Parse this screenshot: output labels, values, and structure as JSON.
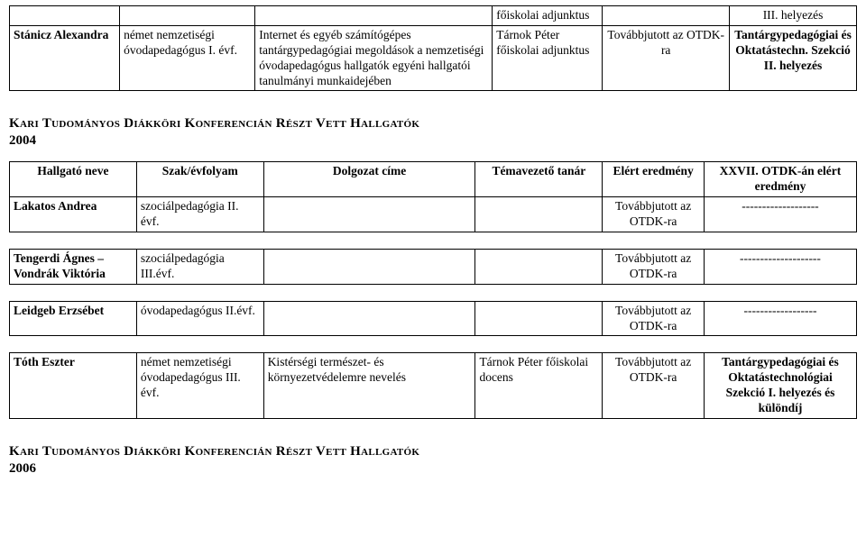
{
  "top_table": {
    "row0": {
      "c4": "főiskolai adjunktus",
      "c6": "III. helyezés"
    },
    "row1": {
      "c1": "Stánicz Alexandra",
      "c2": "német nemzetiségi óvodapedagógus I. évf.",
      "c3": "Internet és egyéb számítógépes tantárgypedagógiai megoldások a nemzetiségi óvodapedagógus hallgatók egyéni hallgatói tanulmányi munkaidejében",
      "c4": "Tárnok Péter főiskolai adjunktus",
      "c5": "Továbbjutott az OTDK-ra",
      "c6": "Tantárgypedagógiai és Oktatástechn. Szekció II. helyezés"
    }
  },
  "section_2004": {
    "heading": "Kari Tudományos Diákköri Konferencián Részt Vett Hallgatók",
    "year": "2004",
    "head": {
      "c1": "Hallgató neve",
      "c2": "Szak/évfolyam",
      "c3": "Dolgozat címe",
      "c4": "Témavezető tanár",
      "c5": "Elért eredmény",
      "c6": "XXVII. OTDK-án elért eredmény"
    },
    "rows": [
      {
        "c1": "Lakatos Andrea",
        "c2": "szociálpedagógia II. évf.",
        "c3": "",
        "c4": "",
        "c5": "Továbbjutott az OTDK-ra",
        "c6": "-------------------"
      },
      {
        "c1": "Tengerdi Ágnes – Vondrák Viktória",
        "c2": "szociálpedagógia III.évf.",
        "c3": "",
        "c4": "",
        "c5": "Továbbjutott az OTDK-ra",
        "c6": "--------------------"
      },
      {
        "c1": "Leidgeb Erzsébet",
        "c2": "óvodapedagógus II.évf.",
        "c3": "",
        "c4": "",
        "c5": "Továbbjutott az OTDK-ra",
        "c6": "------------------"
      },
      {
        "c1": "Tóth Eszter",
        "c2": "német nemzetiségi óvodapedagógus III. évf.",
        "c3": "Kistérségi természet- és környezetvédelemre nevelés",
        "c4": "Tárnok Péter főiskolai docens",
        "c5": "Továbbjutott az OTDK-ra",
        "c6": "Tantárgypedagógiai és Oktatástechnológiai Szekció I. helyezés és különdíj"
      }
    ]
  },
  "section_2006": {
    "heading": "Kari Tudományos Diákköri Konferencián Részt Vett Hallgatók",
    "year": "2006"
  }
}
